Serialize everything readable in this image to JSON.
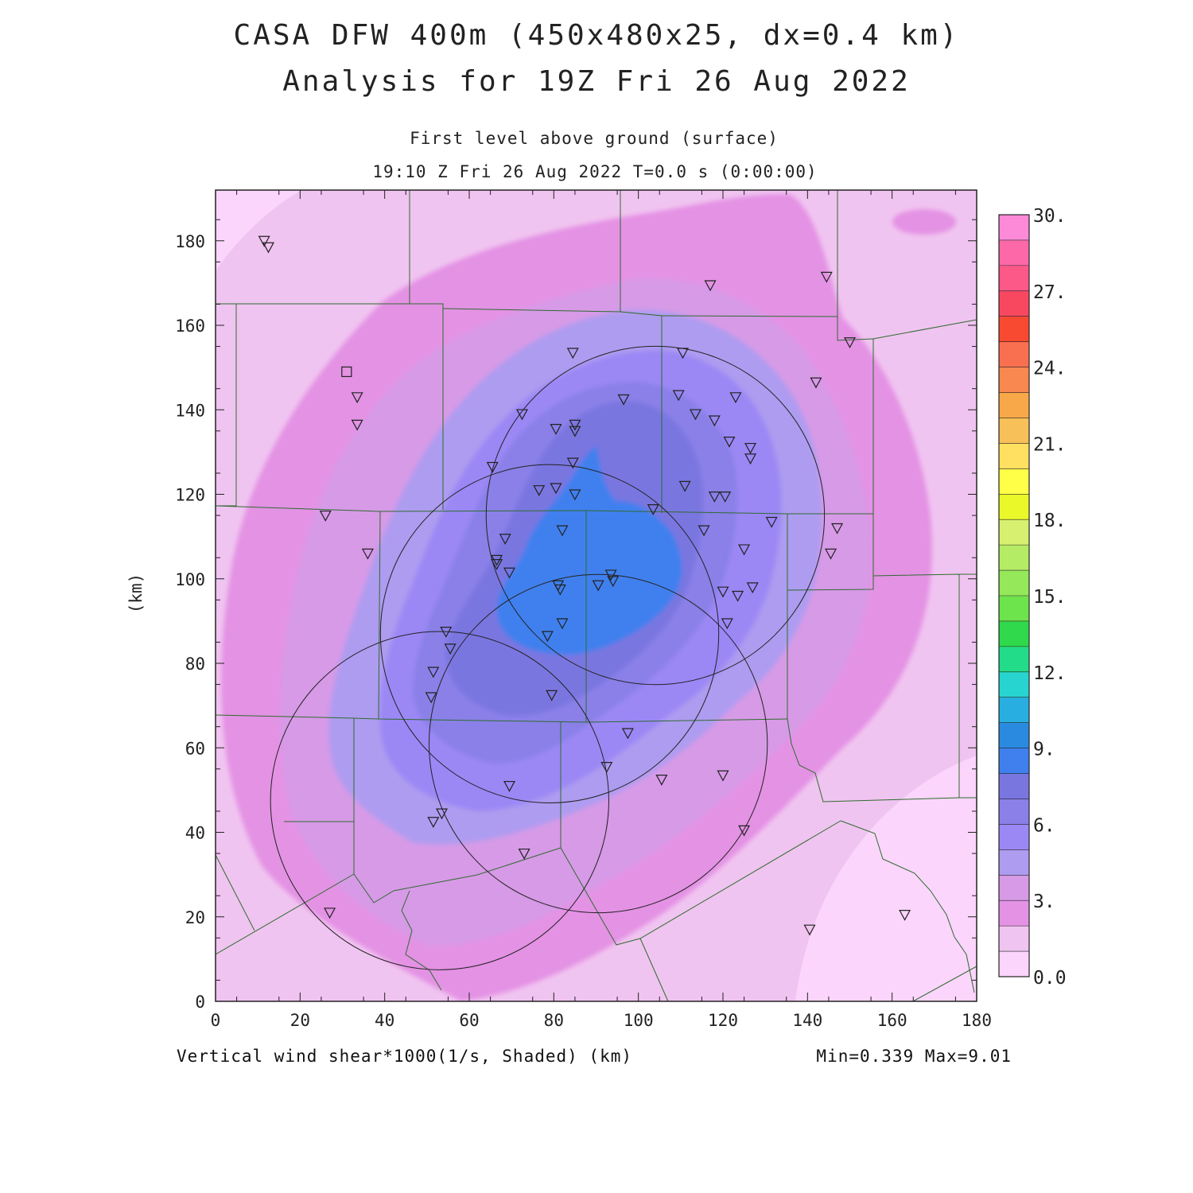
{
  "header": {
    "title_line1": "CASA DFW 400m (450x480x25, dx=0.4 km)",
    "title_line2": "Analysis for 19Z Fri 26 Aug 2022",
    "subtitle_line1": "First level above ground (surface)",
    "subtitle_line2": "19:10 Z Fri 26 Aug 2022   T=0.0 s (0:00:00)"
  },
  "footer": {
    "field_label": "Vertical wind shear*1000(1/s, Shaded)  (km)",
    "minmax": "Min=0.339 Max=9.01"
  },
  "axes": {
    "x_ticks": [
      "0",
      "20",
      "40",
      "60",
      "80",
      "100",
      "120",
      "140",
      "160",
      "180"
    ],
    "y_ticks": [
      "0",
      "20",
      "40",
      "60",
      "80",
      "100",
      "120",
      "140",
      "160",
      "180"
    ],
    "y_label": "(km)",
    "x_range": [
      0,
      180
    ],
    "y_range": [
      0,
      192
    ]
  },
  "colorbar": {
    "labels": [
      "30.",
      "27.",
      "24.",
      "21.",
      "18.",
      "15.",
      "12.",
      "9.",
      "6.",
      "3.",
      "0.0"
    ],
    "colors_bottom_to_top": [
      "#fbd5fb",
      "#f0c4f0",
      "#e492e4",
      "#d79ae7",
      "#ae9cf0",
      "#9b88f5",
      "#8a80e8",
      "#7a76e0",
      "#4080ee",
      "#2a8ae0",
      "#28aee0",
      "#28d4d0",
      "#22dc8a",
      "#30d84c",
      "#6ee44c",
      "#94e85a",
      "#b4ec66",
      "#d8f070",
      "#eaf82a",
      "#ffff48",
      "#ffe060",
      "#f8c058",
      "#f8a848",
      "#f88850",
      "#f87050",
      "#f84a30",
      "#f84860",
      "#fc5888",
      "#fc68a8",
      "#fc8ad8"
    ]
  },
  "map": {
    "radar_circles": [
      {
        "name": "radar-ring-north",
        "cx": 104,
        "cy": 115,
        "r": 40
      },
      {
        "name": "radar-ring-center",
        "cx": 79,
        "cy": 87,
        "r": 40
      },
      {
        "name": "radar-ring-southeast",
        "cx": 90.5,
        "cy": 61,
        "r": 40
      },
      {
        "name": "radar-ring-southwest",
        "cx": 53,
        "cy": 47.5,
        "r": 40
      }
    ],
    "station_triangles": [
      [
        11.5,
        180
      ],
      [
        12.5,
        178.5
      ],
      [
        117,
        169.5
      ],
      [
        144.5,
        171.5
      ],
      [
        150,
        156
      ],
      [
        84.5,
        153.5
      ],
      [
        110.5,
        153.5
      ],
      [
        33.5,
        143
      ],
      [
        33.5,
        136.5
      ],
      [
        72.5,
        139
      ],
      [
        96.5,
        142.5
      ],
      [
        109.5,
        143.5
      ],
      [
        123,
        143
      ],
      [
        142,
        146.5
      ],
      [
        80.5,
        135.5
      ],
      [
        85,
        136.5
      ],
      [
        85,
        135
      ],
      [
        113.5,
        139
      ],
      [
        118,
        137.5
      ],
      [
        121.5,
        132.5
      ],
      [
        126.5,
        131
      ],
      [
        126.5,
        128.5
      ],
      [
        65.5,
        126.5
      ],
      [
        84.5,
        127.5
      ],
      [
        76.5,
        121
      ],
      [
        80.5,
        121.5
      ],
      [
        85,
        120
      ],
      [
        111,
        122
      ],
      [
        118,
        119.5
      ],
      [
        120.5,
        119.5
      ],
      [
        103.5,
        116.5
      ],
      [
        26,
        115
      ],
      [
        36,
        106
      ],
      [
        68.5,
        109.5
      ],
      [
        82,
        111.5
      ],
      [
        115.5,
        111.5
      ],
      [
        131.5,
        113.5
      ],
      [
        147,
        112
      ],
      [
        145.5,
        106
      ],
      [
        125,
        107
      ],
      [
        66.5,
        104.5
      ],
      [
        66.5,
        103.5
      ],
      [
        69.5,
        101.5
      ],
      [
        93.5,
        101
      ],
      [
        94,
        99.5
      ],
      [
        90.5,
        98.5
      ],
      [
        81,
        98.5
      ],
      [
        81.5,
        97.5
      ],
      [
        120,
        97
      ],
      [
        123.5,
        96
      ],
      [
        127,
        98
      ],
      [
        82,
        89.5
      ],
      [
        78.5,
        86.5
      ],
      [
        121,
        89.5
      ],
      [
        54.5,
        87.5
      ],
      [
        55.5,
        83.5
      ],
      [
        51.5,
        78
      ],
      [
        51,
        72
      ],
      [
        79.5,
        72.5
      ],
      [
        97.5,
        63.5
      ],
      [
        92.5,
        55.5
      ],
      [
        120,
        53.5
      ],
      [
        105.5,
        52.5
      ],
      [
        69.5,
        51
      ],
      [
        53.5,
        44.5
      ],
      [
        51.5,
        42.5
      ],
      [
        125,
        40.5
      ],
      [
        73,
        35
      ],
      [
        27,
        21
      ],
      [
        140.5,
        17
      ],
      [
        163,
        20.5
      ]
    ],
    "station_squares": [
      [
        31,
        149
      ]
    ]
  }
}
